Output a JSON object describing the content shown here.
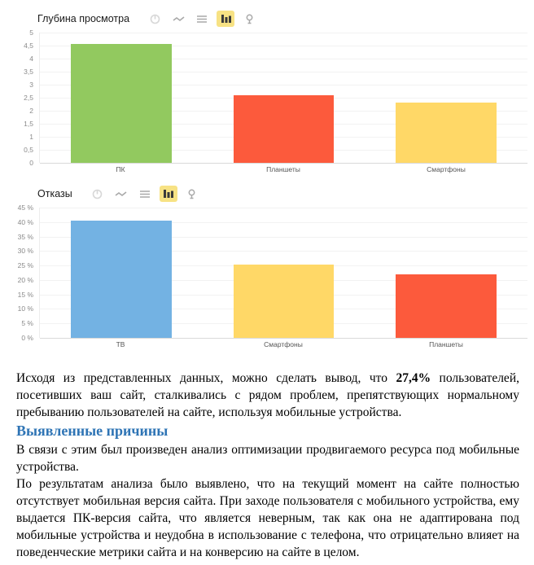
{
  "toolbar": {
    "icons": [
      "pie-chart",
      "line-chart",
      "stacked-area",
      "bar-chart",
      "map-pin"
    ],
    "selected": "bar-chart",
    "selected_bg": "#f7e284"
  },
  "chart_data": [
    {
      "type": "bar",
      "title": "Глубина просмотра",
      "categories": [
        "ПК",
        "Планшеты",
        "Смартфоны"
      ],
      "values": [
        4.55,
        2.6,
        2.3
      ],
      "bar_colors": [
        "#92c95f",
        "#fc5a3c",
        "#ffd867"
      ],
      "ylim": [
        0,
        5
      ],
      "ytick_step": 0.5,
      "ytick_labels": [
        "5",
        "4,5",
        "4",
        "3,5",
        "3",
        "2,5",
        "2",
        "1,5",
        "1",
        "0,5",
        "0"
      ],
      "grid": true,
      "legend": false
    },
    {
      "type": "bar",
      "title": "Отказы",
      "categories": [
        "ТВ",
        "Смартфоны",
        "Планшеты"
      ],
      "values": [
        40.5,
        25.4,
        22
      ],
      "bar_colors": [
        "#73b2e3",
        "#ffd867",
        "#fc5a3c"
      ],
      "ylim": [
        0,
        45
      ],
      "ytick_step": 5,
      "ytick_labels": [
        "45 %",
        "40 %",
        "35 %",
        "30 %",
        "25 %",
        "20 %",
        "15 %",
        "10 %",
        "5 %",
        "0 %"
      ],
      "grid": true,
      "legend": false
    }
  ],
  "analysis": {
    "p1_before": "Исходя из представленных данных, можно сделать вывод, что ",
    "p1_bold": "27,4%",
    "p1_after": " пользователей, посетивших ваш сайт, сталкивались с рядом проблем, препятствующих нормальному пребыванию пользователей на сайте, используя мобильные устройства.",
    "heading": "Выявленные причины",
    "p2": "В связи с этим был произведен анализ оптимизации продвигаемого ресурса под мобильные устройства.",
    "p3": "По результатам анализа было выявлено, что на текущий момент на сайте полностью отсутствует мобильная версия сайта. При заходе пользователя с мобильного устройства, ему выдается ПК-версия сайта, что является неверным, так как она не адаптирована под мобильные устройства и неудобна в использование с телефона, что отрицательно влияет на поведенческие метрики сайта и на конверсию на сайте в целом."
  },
  "colors": {
    "heading_blue": "#2e74b5",
    "green": "#92c95f",
    "red": "#fc5a3c",
    "yellow": "#ffd867",
    "blue": "#73b2e3",
    "gridline": "#f2f2f2"
  }
}
